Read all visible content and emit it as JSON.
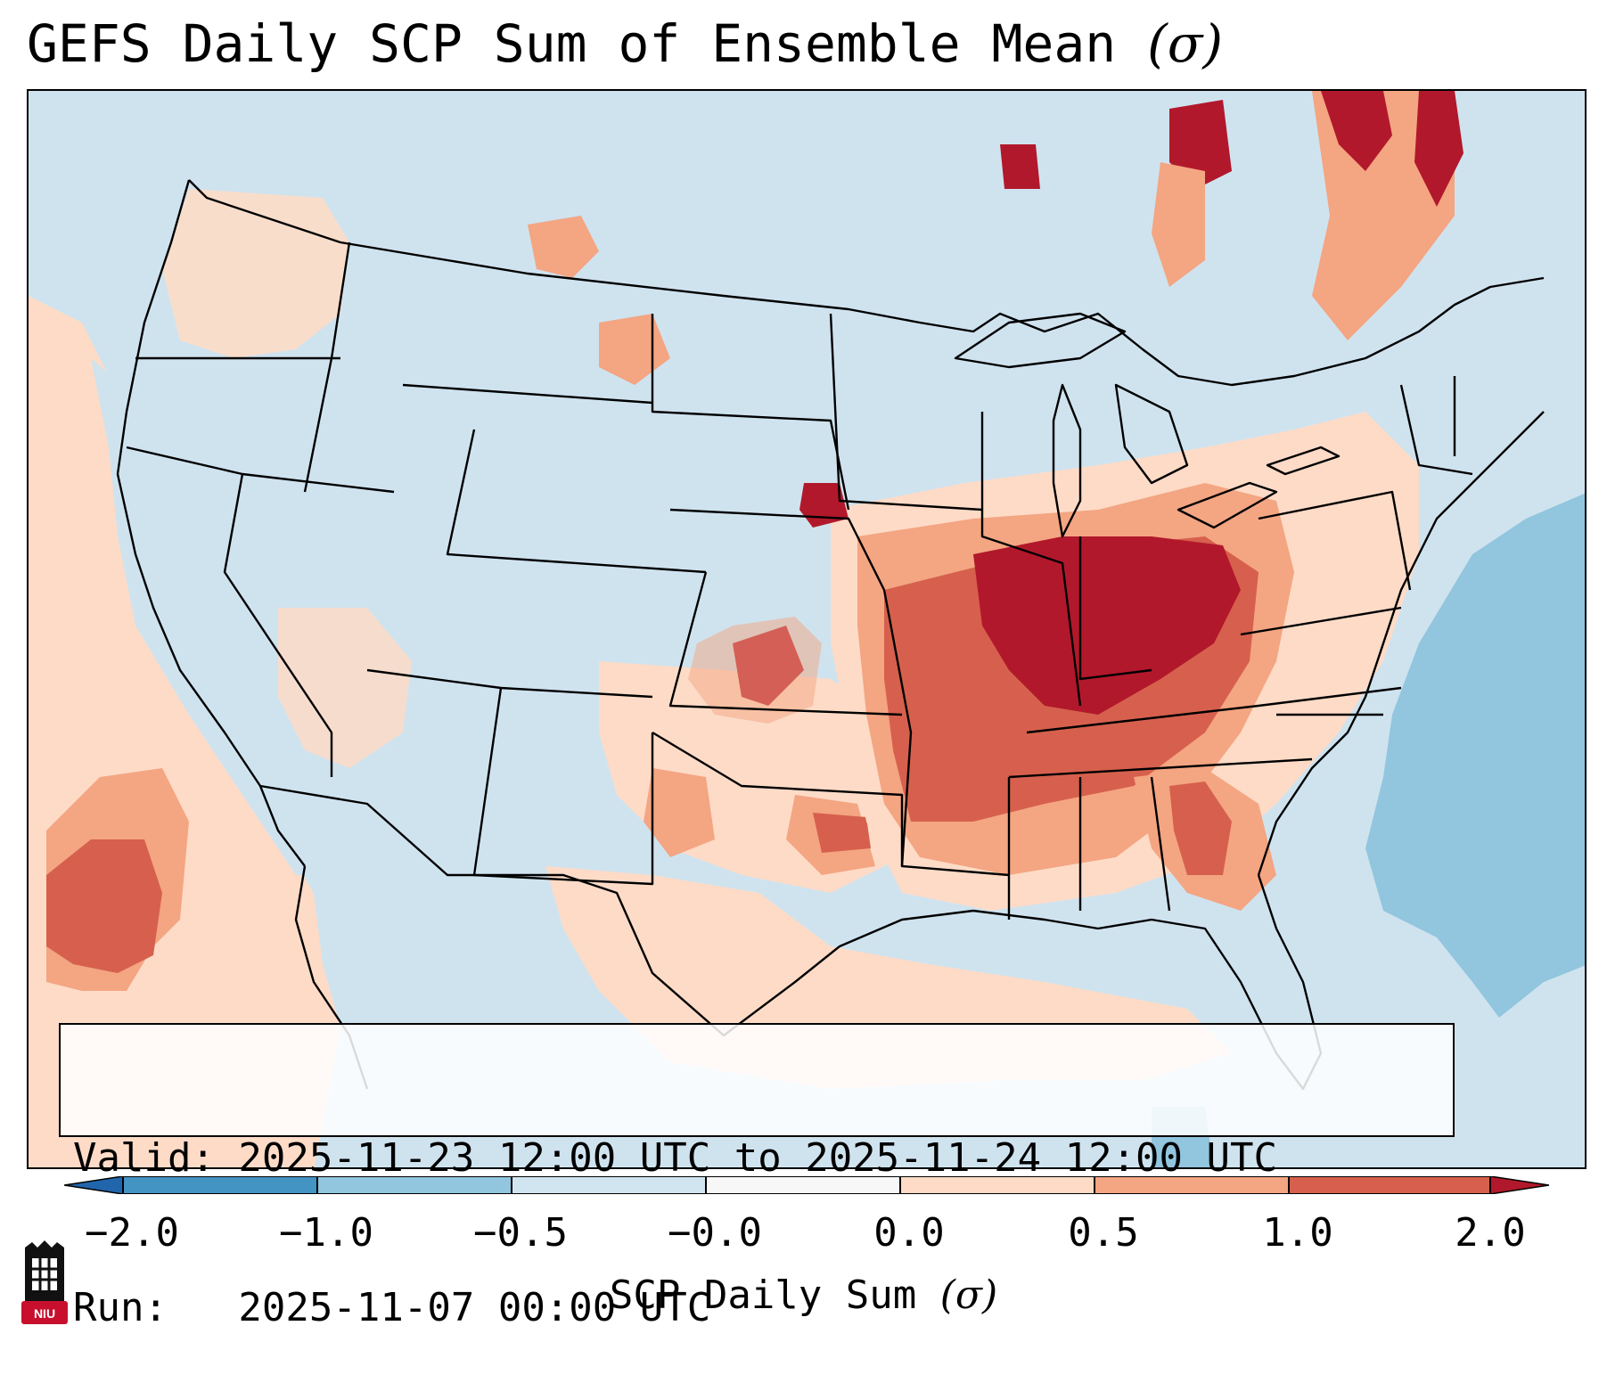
{
  "title": {
    "text": "GEFS Daily SCP Sum of Ensemble Mean",
    "sigma": "(σ)"
  },
  "info": {
    "valid_line": "Valid: 2025-11-23 12:00 UTC to 2025-11-24 12:00 UTC",
    "run_line": "Run:   2025-11-07 00:00 UTC"
  },
  "colorbar": {
    "label_text": "SCP Daily Sum",
    "label_sigma": "(σ)",
    "ticks": [
      "−2.0",
      "−1.0",
      "−0.5",
      "−0.0",
      "0.0",
      "0.5",
      "1.0",
      "2.0"
    ],
    "bins": [
      {
        "range": "<-2.0",
        "color": "#2166ac"
      },
      {
        "range": "-2.0 to -1.0",
        "color": "#4393c3"
      },
      {
        "range": "-1.0 to -0.5",
        "color": "#92c5de"
      },
      {
        "range": "-0.5 to -0.0",
        "color": "#d1e5f0"
      },
      {
        "range": "-0.0 to 0.0",
        "color": "#f7f7f7"
      },
      {
        "range": "0.0 to 0.5",
        "color": "#fddbc7"
      },
      {
        "range": "0.5 to 1.0",
        "color": "#f4a582"
      },
      {
        "range": "1.0 to 2.0",
        "color": "#d6604d"
      },
      {
        "range": ">2.0",
        "color": "#b2182b"
      }
    ]
  },
  "map": {
    "region": "Continental United States",
    "highest_anomaly_area": "Ohio Valley / Mid-Mississippi Valley",
    "negative_anomaly_area": "Western Atlantic"
  },
  "logo": {
    "text": "NIU"
  },
  "colors": {
    "background_neutral": "#cfe3ef",
    "strong_positive": "#b2182b",
    "moderate_positive": "#d6604d",
    "weak_positive": "#f4a582",
    "slight_positive": "#fddbc7",
    "negative": "#92c5de",
    "logo_red": "#c8102e"
  }
}
